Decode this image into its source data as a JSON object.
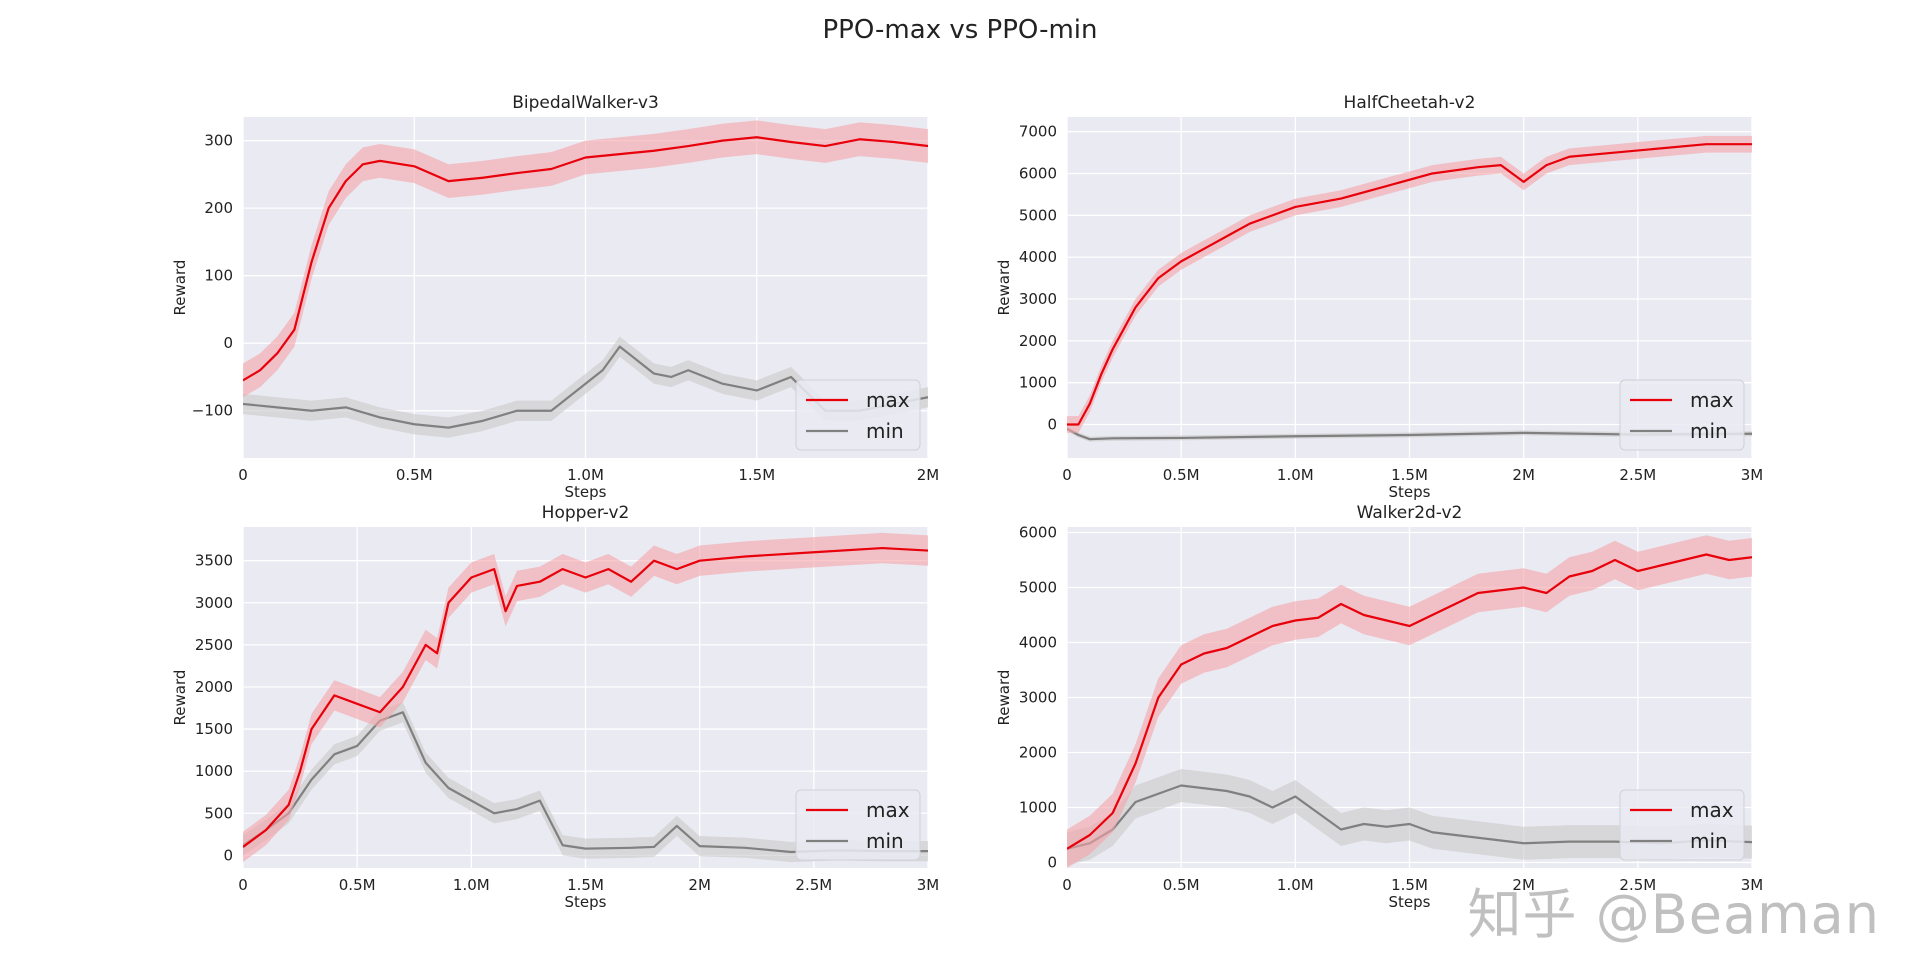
{
  "figure_title": "PPO-max vs PPO-min",
  "watermark": "知乎 @Beaman",
  "colors": {
    "max": "#e8000b",
    "min": "#808080",
    "max_band": "#f4a3a8",
    "min_band": "#c9c9c9",
    "axes_bg": "#eaeaf2",
    "grid": "#ffffff"
  },
  "chart_data": [
    {
      "type": "line",
      "title": "BipedalWalker-v3",
      "xlabel": "Steps",
      "ylabel": "Reward",
      "xlim": [
        0,
        2000000
      ],
      "ylim": [
        -170,
        335
      ],
      "xticks": [
        0,
        500000,
        1000000,
        1500000,
        2000000
      ],
      "xticklabels": [
        "0",
        "0.5M",
        "1.0M",
        "1.5M",
        "2M"
      ],
      "yticks": [
        -100,
        0,
        100,
        200,
        300
      ],
      "yticklabels": [
        "−100",
        "0",
        "100",
        "200",
        "300"
      ],
      "legend": {
        "position": "bottom-right",
        "entries": [
          "max",
          "min"
        ]
      },
      "series": [
        {
          "name": "max",
          "band": 25,
          "x": [
            0,
            50000,
            100000,
            150000,
            200000,
            250000,
            300000,
            350000,
            400000,
            500000,
            600000,
            700000,
            800000,
            900000,
            1000000,
            1100000,
            1200000,
            1300000,
            1400000,
            1500000,
            1600000,
            1700000,
            1800000,
            1900000,
            2000000
          ],
          "y": [
            -55,
            -40,
            -15,
            20,
            120,
            200,
            240,
            265,
            270,
            262,
            240,
            245,
            252,
            258,
            275,
            280,
            285,
            292,
            300,
            305,
            298,
            292,
            302,
            298,
            292
          ]
        },
        {
          "name": "min",
          "band": 15,
          "x": [
            0,
            100000,
            200000,
            300000,
            400000,
            500000,
            600000,
            700000,
            800000,
            900000,
            950000,
            1000000,
            1050000,
            1100000,
            1150000,
            1200000,
            1250000,
            1300000,
            1400000,
            1500000,
            1600000,
            1700000,
            1800000,
            1900000,
            2000000
          ],
          "y": [
            -90,
            -95,
            -100,
            -95,
            -110,
            -120,
            -125,
            -115,
            -100,
            -100,
            -80,
            -60,
            -40,
            -5,
            -25,
            -45,
            -50,
            -40,
            -60,
            -70,
            -50,
            -100,
            -100,
            -90,
            -80
          ]
        }
      ]
    },
    {
      "type": "line",
      "title": "HalfCheetah-v2",
      "xlabel": "Steps",
      "ylabel": "Reward",
      "xlim": [
        0,
        3000000
      ],
      "ylim": [
        -800,
        7350
      ],
      "xticks": [
        0,
        500000,
        1000000,
        1500000,
        2000000,
        2500000,
        3000000
      ],
      "xticklabels": [
        "0",
        "0.5M",
        "1.0M",
        "1.5M",
        "2M",
        "2.5M",
        "3M"
      ],
      "yticks": [
        0,
        1000,
        2000,
        3000,
        4000,
        5000,
        6000,
        7000
      ],
      "yticklabels": [
        "0",
        "1000",
        "2000",
        "3000",
        "4000",
        "5000",
        "6000",
        "7000"
      ],
      "legend": {
        "position": "bottom-right",
        "entries": [
          "max",
          "min"
        ]
      },
      "series": [
        {
          "name": "max",
          "band": 200,
          "x": [
            0,
            50000,
            100000,
            150000,
            200000,
            300000,
            400000,
            500000,
            600000,
            700000,
            800000,
            1000000,
            1200000,
            1400000,
            1600000,
            1800000,
            1900000,
            2000000,
            2100000,
            2200000,
            2400000,
            2600000,
            2800000,
            3000000
          ],
          "y": [
            0,
            0,
            500,
            1200,
            1800,
            2800,
            3500,
            3900,
            4200,
            4500,
            4800,
            5200,
            5400,
            5700,
            6000,
            6150,
            6200,
            5800,
            6200,
            6400,
            6500,
            6600,
            6700,
            6700
          ]
        },
        {
          "name": "min",
          "band": 60,
          "x": [
            0,
            50000,
            100000,
            200000,
            500000,
            1000000,
            1500000,
            2000000,
            2500000,
            3000000
          ],
          "y": [
            -100,
            -250,
            -350,
            -330,
            -320,
            -280,
            -250,
            -200,
            -240,
            -220
          ]
        }
      ]
    },
    {
      "type": "line",
      "title": "Hopper-v2",
      "xlabel": "Steps",
      "ylabel": "Reward",
      "xlim": [
        0,
        3000000
      ],
      "ylim": [
        -150,
        3900
      ],
      "xticks": [
        0,
        500000,
        1000000,
        1500000,
        2000000,
        2500000,
        3000000
      ],
      "xticklabels": [
        "0",
        "0.5M",
        "1.0M",
        "1.5M",
        "2M",
        "2.5M",
        "3M"
      ],
      "yticks": [
        0,
        500,
        1000,
        1500,
        2000,
        2500,
        3000,
        3500
      ],
      "yticklabels": [
        "0",
        "500",
        "1000",
        "1500",
        "2000",
        "2500",
        "3000",
        "3500"
      ],
      "legend": {
        "position": "bottom-right",
        "entries": [
          "max",
          "min"
        ]
      },
      "series": [
        {
          "name": "max",
          "band": 180,
          "x": [
            0,
            100000,
            200000,
            250000,
            300000,
            400000,
            500000,
            600000,
            700000,
            800000,
            850000,
            900000,
            1000000,
            1100000,
            1150000,
            1200000,
            1300000,
            1400000,
            1500000,
            1600000,
            1700000,
            1800000,
            1900000,
            2000000,
            2200000,
            2500000,
            2800000,
            3000000
          ],
          "y": [
            100,
            300,
            600,
            1000,
            1500,
            1900,
            1800,
            1700,
            2000,
            2500,
            2400,
            3000,
            3300,
            3400,
            2900,
            3200,
            3250,
            3400,
            3300,
            3400,
            3250,
            3500,
            3400,
            3500,
            3550,
            3600,
            3650,
            3620
          ]
        },
        {
          "name": "min",
          "band": 120,
          "x": [
            0,
            100000,
            200000,
            300000,
            400000,
            500000,
            600000,
            700000,
            800000,
            900000,
            1000000,
            1100000,
            1200000,
            1300000,
            1400000,
            1500000,
            1700000,
            1800000,
            1900000,
            2000000,
            2200000,
            2400000,
            2600000,
            2800000,
            3000000
          ],
          "y": [
            120,
            300,
            500,
            900,
            1200,
            1300,
            1600,
            1700,
            1100,
            800,
            650,
            500,
            550,
            650,
            120,
            80,
            90,
            100,
            350,
            110,
            90,
            40,
            60,
            50,
            50
          ]
        }
      ]
    },
    {
      "type": "line",
      "title": "Walker2d-v2",
      "xlabel": "Steps",
      "ylabel": "Reward",
      "xlim": [
        0,
        3000000
      ],
      "ylim": [
        -100,
        6100
      ],
      "xticks": [
        0,
        500000,
        1000000,
        1500000,
        2000000,
        2500000,
        3000000
      ],
      "xticklabels": [
        "0",
        "0.5M",
        "1.0M",
        "1.5M",
        "2M",
        "2.5M",
        "3M"
      ],
      "yticks": [
        0,
        1000,
        2000,
        3000,
        4000,
        5000,
        6000
      ],
      "yticklabels": [
        "0",
        "1000",
        "2000",
        "3000",
        "4000",
        "5000",
        "6000"
      ],
      "legend": {
        "position": "bottom-right",
        "entries": [
          "max",
          "min"
        ]
      },
      "series": [
        {
          "name": "max",
          "band": 350,
          "x": [
            0,
            100000,
            200000,
            300000,
            400000,
            500000,
            600000,
            700000,
            800000,
            900000,
            1000000,
            1100000,
            1200000,
            1300000,
            1400000,
            1500000,
            1600000,
            1700000,
            1800000,
            1900000,
            2000000,
            2100000,
            2200000,
            2300000,
            2400000,
            2500000,
            2600000,
            2700000,
            2800000,
            2900000,
            3000000
          ],
          "y": [
            250,
            500,
            900,
            1800,
            3000,
            3600,
            3800,
            3900,
            4100,
            4300,
            4400,
            4450,
            4700,
            4500,
            4400,
            4300,
            4500,
            4700,
            4900,
            4950,
            5000,
            4900,
            5200,
            5300,
            5500,
            5300,
            5400,
            5500,
            5600,
            5500,
            5550
          ]
        },
        {
          "name": "min",
          "band": 300,
          "x": [
            0,
            100000,
            200000,
            300000,
            400000,
            500000,
            600000,
            700000,
            800000,
            900000,
            1000000,
            1100000,
            1200000,
            1300000,
            1400000,
            1500000,
            1600000,
            1800000,
            2000000,
            2200000,
            2400000,
            2600000,
            2800000,
            3000000
          ],
          "y": [
            250,
            350,
            600,
            1100,
            1250,
            1400,
            1350,
            1300,
            1200,
            1000,
            1200,
            900,
            600,
            700,
            650,
            700,
            550,
            450,
            350,
            380,
            380,
            350,
            400,
            370
          ]
        }
      ]
    }
  ]
}
